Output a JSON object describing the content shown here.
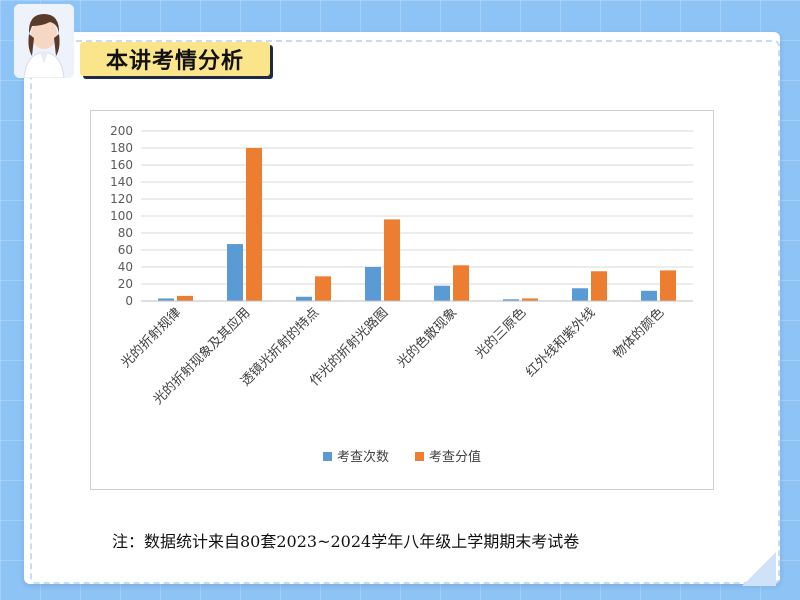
{
  "header": {
    "title": "本讲考情分析"
  },
  "footnote": "注：数据统计来自80套2023~2024学年八年级上学期期末考试卷",
  "colors": {
    "series1": "#5b9bd5",
    "series2": "#ed7d31",
    "grid": "#d9d9d9",
    "title_bg": "#fbe58a"
  },
  "chart_data": {
    "type": "bar",
    "categories": [
      "光的折射规律",
      "光的折射现象及其应用",
      "透镜光折射的特点",
      "作光的折射光路图",
      "光的色散现象",
      "光的三原色",
      "红外线和紫外线",
      "物体的颜色"
    ],
    "series": [
      {
        "name": "考查次数",
        "values": [
          3,
          67,
          5,
          40,
          18,
          2,
          15,
          12
        ]
      },
      {
        "name": "考查分值",
        "values": [
          6,
          180,
          29,
          96,
          42,
          3,
          35,
          36
        ]
      }
    ],
    "ylim": [
      0,
      200
    ],
    "yticks": [
      0,
      20,
      40,
      60,
      80,
      100,
      120,
      140,
      160,
      180,
      200
    ],
    "grid": true,
    "legend": "bottom"
  }
}
